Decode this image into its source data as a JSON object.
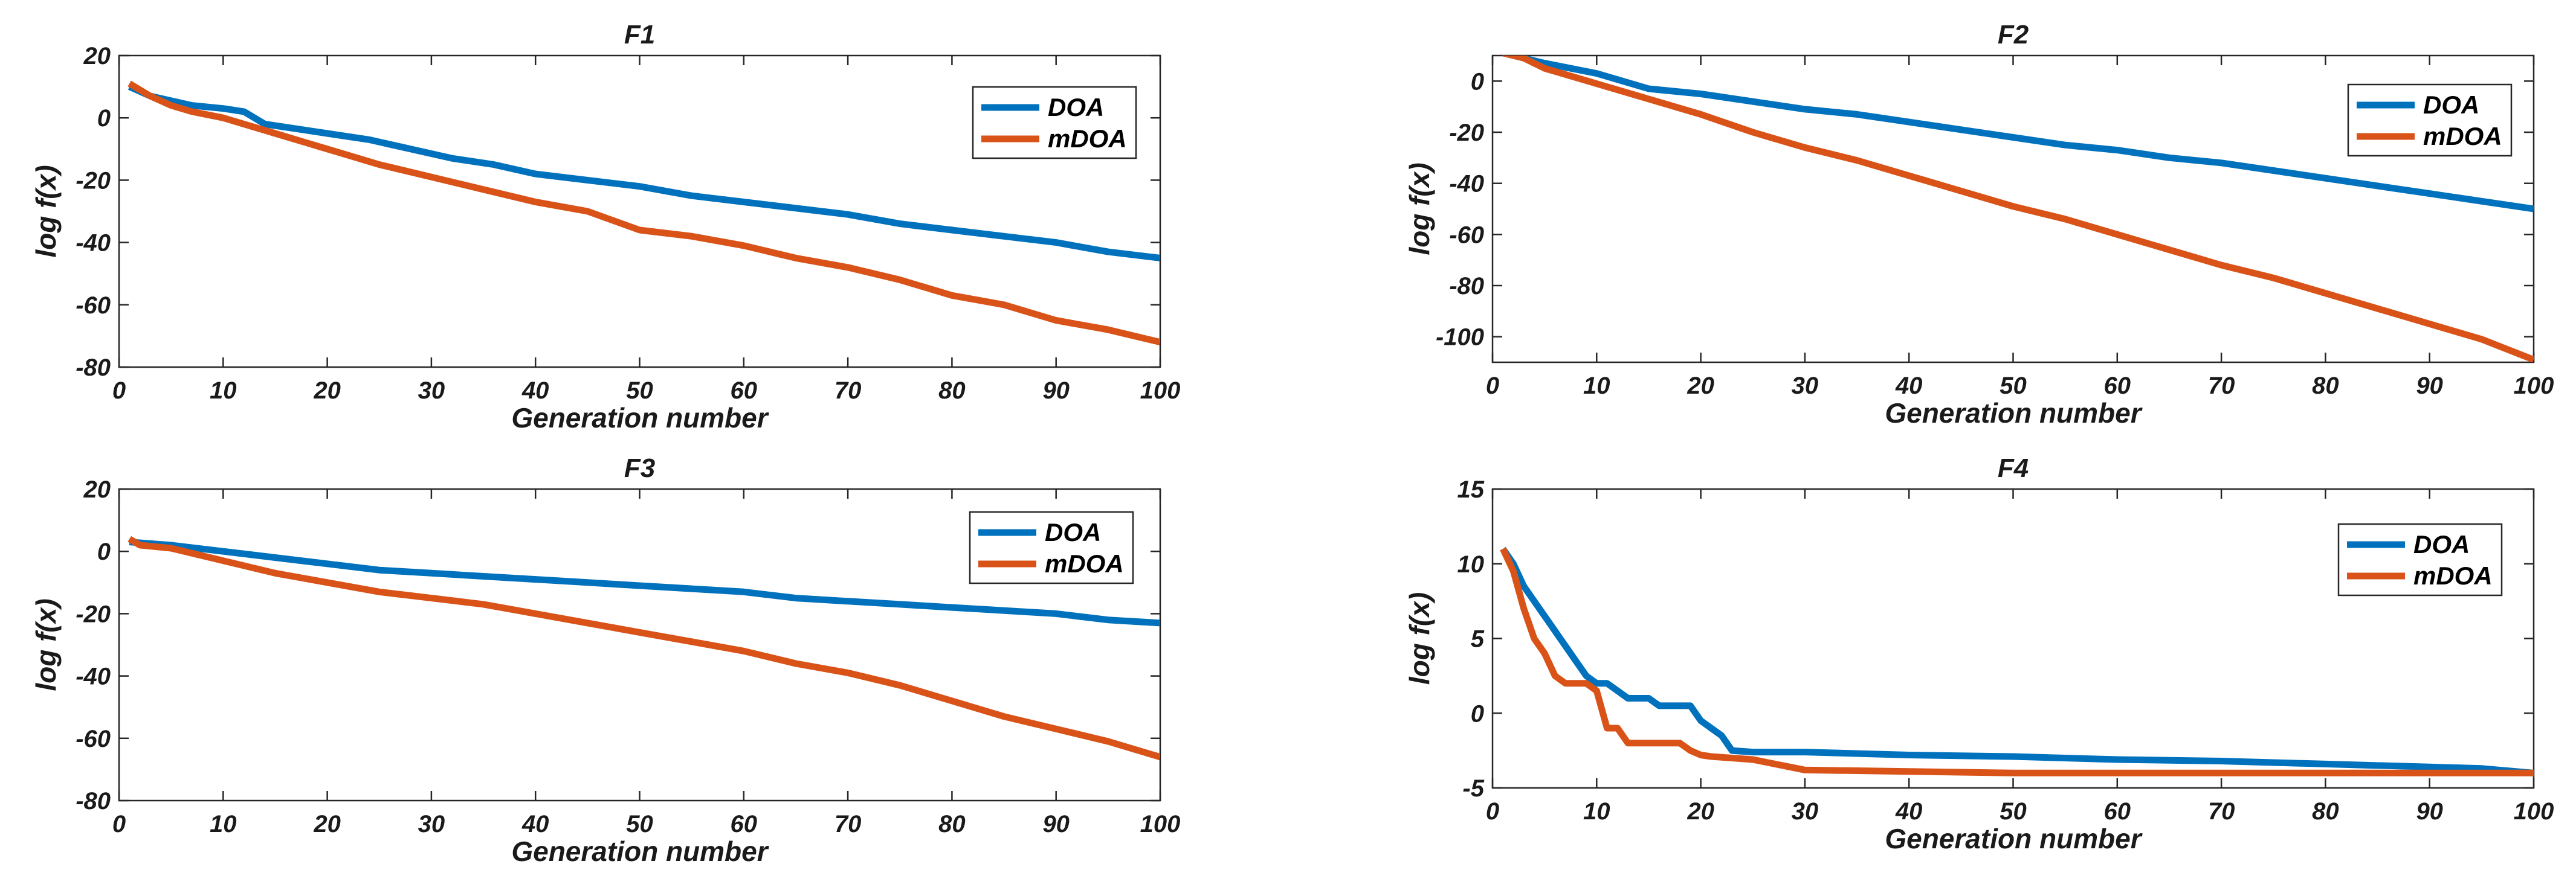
{
  "colors": {
    "DOA": "#0072BD",
    "mDOA": "#D95319"
  },
  "chart_data": [
    {
      "type": "line",
      "title": "F1",
      "xlabel": "Generation number",
      "ylabel": "log f(x)",
      "xlim": [
        0,
        100
      ],
      "ylim": [
        -80,
        20
      ],
      "xticks": [
        0,
        10,
        20,
        30,
        40,
        50,
        60,
        70,
        80,
        90,
        100
      ],
      "yticks": [
        20,
        0,
        -20,
        -40,
        -60,
        -80
      ],
      "legend": "top-right",
      "series": [
        {
          "name": "DOA",
          "color": "#0072BD",
          "x": [
            1,
            3,
            7,
            10,
            12,
            14,
            20,
            24,
            28,
            32,
            36,
            40,
            45,
            50,
            55,
            60,
            65,
            70,
            75,
            80,
            85,
            90,
            95,
            100
          ],
          "y": [
            10,
            7,
            4,
            3,
            2,
            -2,
            -5,
            -7,
            -10,
            -13,
            -15,
            -18,
            -20,
            -22,
            -25,
            -27,
            -29,
            -31,
            -34,
            -36,
            -38,
            -40,
            -43,
            -45
          ]
        },
        {
          "name": "mDOA",
          "color": "#D95319",
          "x": [
            1,
            2,
            3,
            5,
            7,
            10,
            13,
            16,
            20,
            25,
            30,
            35,
            40,
            45,
            50,
            55,
            60,
            65,
            70,
            75,
            80,
            85,
            90,
            95,
            100
          ],
          "y": [
            11,
            9,
            7,
            4,
            2,
            0,
            -3,
            -6,
            -10,
            -15,
            -19,
            -23,
            -27,
            -30,
            -36,
            -38,
            -41,
            -45,
            -48,
            -52,
            -57,
            -60,
            -65,
            -68,
            -72
          ]
        }
      ]
    },
    {
      "type": "line",
      "title": "F2",
      "xlabel": "Generation number",
      "ylabel": "log f(x)",
      "xlim": [
        0,
        100
      ],
      "ylim": [
        -110,
        10
      ],
      "xticks": [
        0,
        10,
        20,
        30,
        40,
        50,
        60,
        70,
        80,
        90,
        100
      ],
      "yticks": [
        0,
        -20,
        -40,
        -60,
        -80,
        -100
      ],
      "legend": "top-right",
      "series": [
        {
          "name": "DOA",
          "color": "#0072BD",
          "x": [
            1,
            5,
            10,
            15,
            20,
            25,
            30,
            35,
            40,
            45,
            50,
            55,
            60,
            65,
            70,
            75,
            80,
            85,
            90,
            95,
            100
          ],
          "y": [
            11,
            7,
            3,
            -3,
            -5,
            -8,
            -11,
            -13,
            -16,
            -19,
            -22,
            -25,
            -27,
            -30,
            -32,
            -35,
            -38,
            -41,
            -44,
            -47,
            -50
          ]
        },
        {
          "name": "mDOA",
          "color": "#D95319",
          "x": [
            1,
            3,
            5,
            10,
            15,
            20,
            25,
            30,
            35,
            40,
            45,
            50,
            55,
            60,
            65,
            70,
            75,
            80,
            85,
            90,
            95,
            100
          ],
          "y": [
            11,
            9,
            5,
            -1,
            -7,
            -13,
            -20,
            -26,
            -31,
            -37,
            -43,
            -49,
            -54,
            -60,
            -66,
            -72,
            -77,
            -83,
            -89,
            -95,
            -101,
            -109
          ]
        }
      ]
    },
    {
      "type": "line",
      "title": "F3",
      "xlabel": "Generation number",
      "ylabel": "log f(x)",
      "xlim": [
        0,
        100
      ],
      "ylim": [
        -80,
        20
      ],
      "xticks": [
        0,
        10,
        20,
        30,
        40,
        50,
        60,
        70,
        80,
        90,
        100
      ],
      "yticks": [
        20,
        0,
        -20,
        -40,
        -60,
        -80
      ],
      "legend": "top-right",
      "series": [
        {
          "name": "DOA",
          "color": "#0072BD",
          "x": [
            1,
            5,
            10,
            15,
            20,
            25,
            30,
            35,
            40,
            45,
            50,
            55,
            60,
            65,
            70,
            75,
            80,
            85,
            90,
            95,
            100
          ],
          "y": [
            3,
            2,
            0,
            -2,
            -4,
            -6,
            -7,
            -8,
            -9,
            -10,
            -11,
            -12,
            -13,
            -15,
            -16,
            -17,
            -18,
            -19,
            -20,
            -22,
            -23
          ]
        },
        {
          "name": "mDOA",
          "color": "#D95319",
          "x": [
            1,
            2,
            5,
            10,
            15,
            20,
            25,
            30,
            35,
            40,
            45,
            50,
            55,
            60,
            65,
            70,
            75,
            80,
            85,
            90,
            95,
            100
          ],
          "y": [
            4,
            2,
            1,
            -3,
            -7,
            -10,
            -13,
            -15,
            -17,
            -20,
            -23,
            -26,
            -29,
            -32,
            -36,
            -39,
            -43,
            -48,
            -53,
            -57,
            -61,
            -66
          ]
        }
      ]
    },
    {
      "type": "line",
      "title": "F4",
      "xlabel": "Generation number",
      "ylabel": "log f(x)",
      "xlim": [
        0,
        100
      ],
      "ylim": [
        -5,
        15
      ],
      "xticks": [
        0,
        10,
        20,
        30,
        40,
        50,
        60,
        70,
        80,
        90,
        100
      ],
      "yticks": [
        15,
        10,
        5,
        0,
        -5
      ],
      "legend": "top-right",
      "series": [
        {
          "name": "DOA",
          "color": "#0072BD",
          "x": [
            1,
            2,
            3,
            4,
            5,
            6,
            7,
            8,
            9,
            10,
            11,
            12,
            13,
            14,
            15,
            16,
            17,
            18,
            19,
            20,
            21,
            22,
            23,
            25,
            30,
            40,
            50,
            60,
            70,
            80,
            90,
            95,
            100
          ],
          "y": [
            11,
            10,
            8.5,
            7.5,
            6.5,
            5.5,
            4.5,
            3.5,
            2.5,
            2,
            2,
            1.5,
            1,
            1,
            1,
            0.5,
            0.5,
            0.5,
            0.5,
            -0.5,
            -1,
            -1.5,
            -2.5,
            -2.6,
            -2.6,
            -2.8,
            -2.9,
            -3.1,
            -3.2,
            -3.4,
            -3.6,
            -3.7,
            -4
          ]
        },
        {
          "name": "mDOA",
          "color": "#D95319",
          "x": [
            1,
            2,
            3,
            4,
            5,
            6,
            7,
            8,
            9,
            10,
            11,
            12,
            13,
            14,
            15,
            16,
            17,
            18,
            19,
            20,
            21,
            25,
            30,
            40,
            50,
            60,
            70,
            80,
            90,
            100
          ],
          "y": [
            11,
            9.5,
            7,
            5,
            4,
            2.5,
            2,
            2,
            2,
            1.5,
            -1,
            -1,
            -2,
            -2,
            -2,
            -2,
            -2,
            -2,
            -2.5,
            -2.8,
            -2.9,
            -3.1,
            -3.8,
            -3.9,
            -4,
            -4,
            -4,
            -4,
            -4,
            -4
          ]
        }
      ]
    }
  ]
}
